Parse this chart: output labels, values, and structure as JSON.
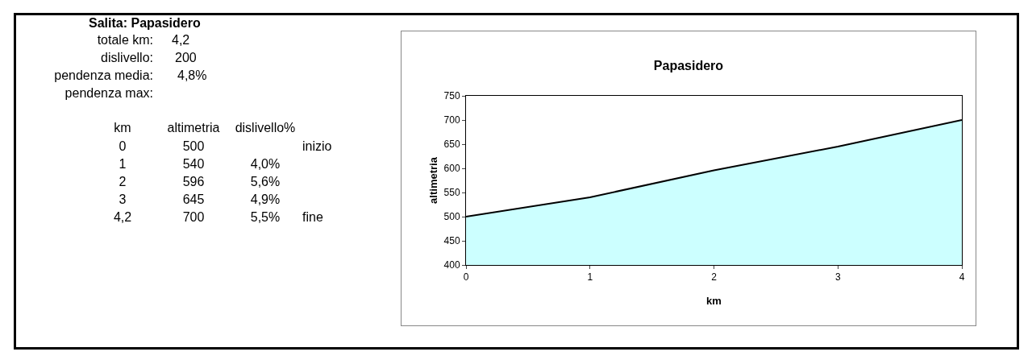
{
  "chart_data": [
    {
      "type": "other",
      "title": "Salita: Papasidero",
      "annotations": [
        "totale km:",
        "4,2",
        "dislivello:",
        "200",
        "pendenza media:",
        "4,8%",
        "pendenza max:",
        "km",
        "altimetria",
        "dislivello%",
        "0",
        "500",
        "inizio",
        "1",
        "540",
        "4,0%",
        "2",
        "596",
        "5,6%",
        "3",
        "645",
        "4,9%",
        "4,2",
        "700",
        "5,5%",
        "fine"
      ]
    },
    {
      "type": "area",
      "title": "Papasidero",
      "xlabel": "km",
      "ylabel": "altimetria",
      "categories": [
        "0",
        "1",
        "2",
        "3",
        "4"
      ],
      "series": [
        {
          "color": "#ccffff",
          "values": [
            500,
            540,
            596,
            645,
            700
          ]
        }
      ],
      "ylim": [
        400,
        750
      ],
      "yticks": [
        400,
        450,
        500,
        550,
        600,
        650,
        700,
        750
      ],
      "grid": false
    }
  ]
}
